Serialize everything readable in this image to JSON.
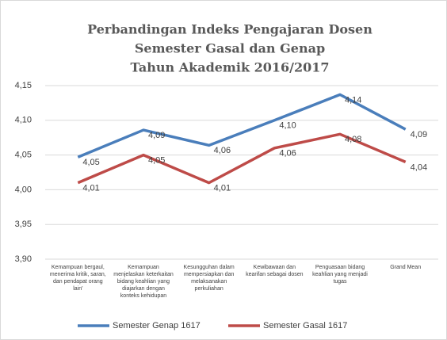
{
  "chart_data": {
    "type": "line",
    "title": [
      "Perbandingan Indeks Pengajaran Dosen",
      "Semester  Gasal dan Genap",
      "Tahun Akademik 2016/2017"
    ],
    "categories": [
      "Kemampuan bergaul, menerima kritik, saran, dan pendapat orang lain'",
      "Kemampuan menjelaskan keterkaitan bidang keahlian yang diajarkan dengan konteks kehidupan",
      "Kesungguhan dalam mempersiapkan dan melaksanakan perkuliahan",
      "Kewibawaan dan kearifan sebagai dosen",
      "Penguasaan bidang keahlian yang menjadi tugas",
      "Grand Mean"
    ],
    "series": [
      {
        "name": "Semester Genap 1617",
        "color": "#4a7ebb",
        "values": [
          4.047,
          4.086,
          4.064,
          4.1,
          4.137,
          4.087
        ],
        "value_labels": [
          "4,05",
          "4,09",
          "4,06",
          "4,10",
          "4,14",
          "4,09"
        ]
      },
      {
        "name": "Semester Gasal 1617",
        "color": "#be4b48",
        "values": [
          4.01,
          4.05,
          4.01,
          4.06,
          4.08,
          4.04
        ],
        "value_labels": [
          "4,01",
          "4,05",
          "4,01",
          "4,06",
          "4,08",
          "4,04"
        ]
      }
    ],
    "ylim": [
      3.9,
      4.15
    ],
    "yticks": [
      {
        "value": 3.9,
        "label": "3,90"
      },
      {
        "value": 3.95,
        "label": "3,95"
      },
      {
        "value": 4.0,
        "label": "4,00"
      },
      {
        "value": 4.05,
        "label": "4,05"
      },
      {
        "value": 4.1,
        "label": "4,10"
      },
      {
        "value": 4.15,
        "label": "4,15"
      }
    ],
    "grid": true,
    "grid_color": "#d9d9d9"
  }
}
